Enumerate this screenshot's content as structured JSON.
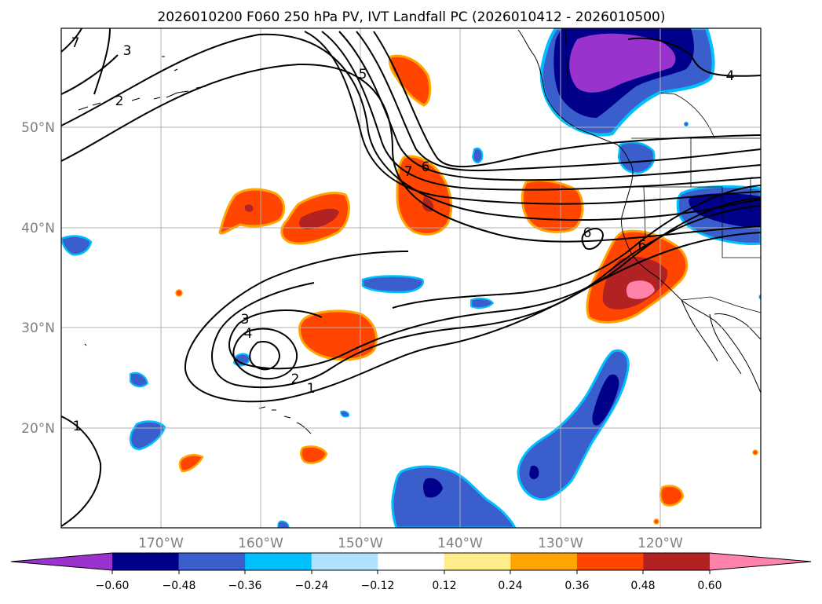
{
  "title": "2026010200 F060 250 hPa PV, IVT Landfall PC (2026010412 - 2026010500)",
  "map": {
    "lat_ticks": [
      "50°N",
      "40°N",
      "30°N",
      "20°N"
    ],
    "lon_ticks": [
      "170°W",
      "160°W",
      "150°W",
      "140°W",
      "130°W",
      "120°W"
    ],
    "contour_labels": [
      "1",
      "1",
      "2",
      "2",
      "3",
      "3",
      "4",
      "4",
      "5",
      "6",
      "6",
      "6",
      "7",
      "7"
    ]
  },
  "colorbar": {
    "ticks": [
      "−0.60",
      "−0.48",
      "−0.36",
      "−0.24",
      "−0.12",
      "0.12",
      "0.24",
      "0.36",
      "0.48",
      "0.60"
    ],
    "colors": [
      "#9a32cd",
      "#00008b",
      "#3a5fcd",
      "#00bfff",
      "#b0e2ff",
      "#ffffff",
      "#ffec8b",
      "#ffa500",
      "#ff4500",
      "#b22222",
      "#ff82ab"
    ]
  }
}
